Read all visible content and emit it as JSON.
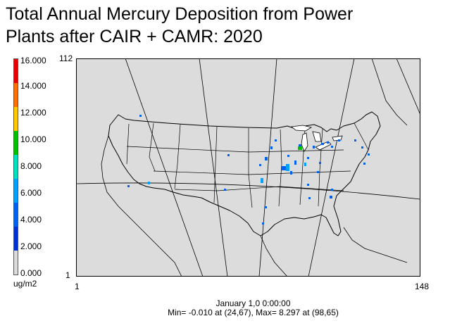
{
  "title": {
    "line1": "Total Annual Mercury Deposition from Power",
    "line2": "Plants after CAIR + CAMR: 2020"
  },
  "legend": {
    "unit": "ug/m2",
    "levels": [
      {
        "label": "16.000",
        "color": "#e80000"
      },
      {
        "label": "14.000",
        "color": "#ff7000"
      },
      {
        "label": "12.000",
        "color": "#ffc800"
      },
      {
        "label": "10.000",
        "color": "#00c000"
      },
      {
        "label": "8.000",
        "color": "#00e0c0"
      },
      {
        "label": "6.000",
        "color": "#00a0ff"
      },
      {
        "label": "4.000",
        "color": "#0060f0"
      },
      {
        "label": "2.000",
        "color": "#0030d0"
      },
      {
        "label": "0.000",
        "color": "#dcdcdc"
      }
    ]
  },
  "grid": {
    "row_top": "112",
    "row_bottom": "1",
    "col_left": "1",
    "col_right": "148"
  },
  "footer": {
    "date": "January 1,0 0:00:00",
    "minmax": "Min=  -0.010 at (24,67), Max=   8.297 at (98,65)"
  },
  "map": {
    "background_color": "#dcdcdc",
    "boundary_color": "#000000",
    "deposition_cell_colors": [
      "#0060f0",
      "#00a0ff",
      "#00c000"
    ]
  }
}
